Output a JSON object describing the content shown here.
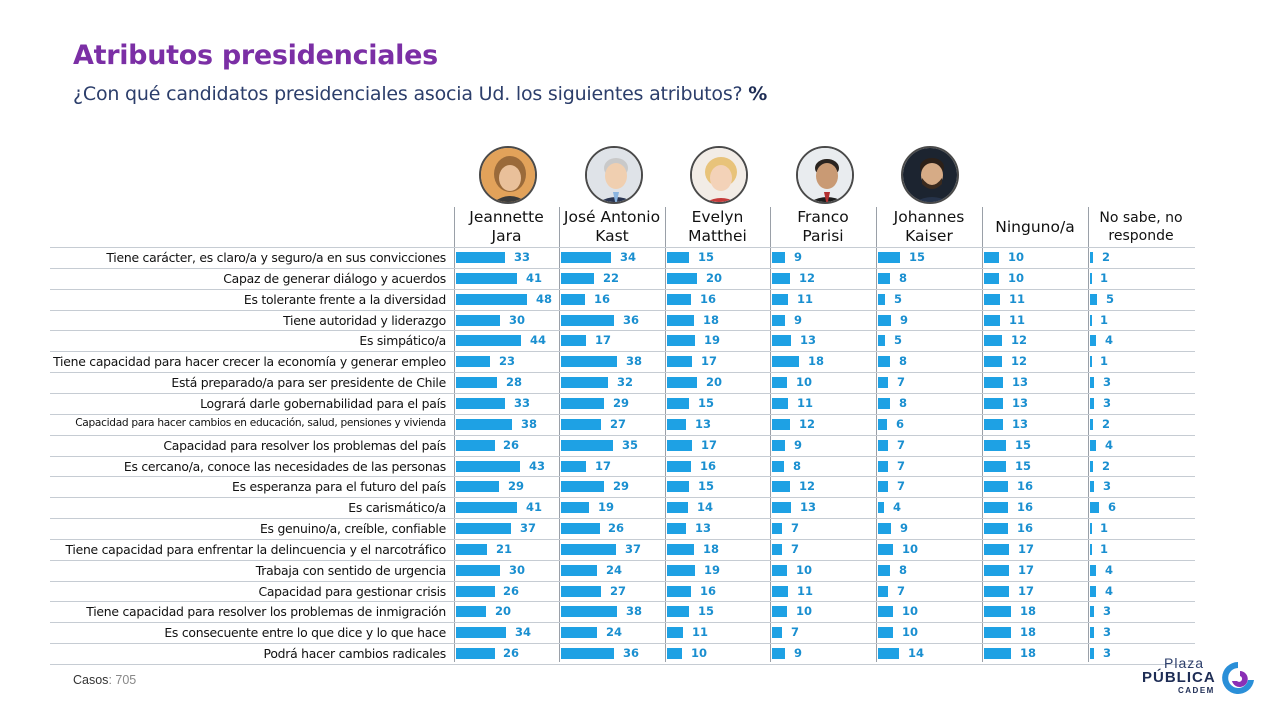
{
  "header": {
    "title": "Atributos presidenciales",
    "subtitle": "¿Con qué candidatos presidenciales asocia Ud. los siguientes atributos?",
    "subtitle_unit": "%"
  },
  "footer": {
    "cases_label": "Casos",
    "cases_value": ": 705",
    "logo_top": "Plaza",
    "logo_main": "PÚBLICA",
    "logo_sub": "CADEM"
  },
  "colors": {
    "title": "#7b2fa5",
    "bar": "#1ea1e4",
    "value": "#1a8fd0"
  },
  "chart_data": {
    "type": "bar",
    "orientation": "horizontal",
    "unit": "%",
    "series": [
      {
        "name": "Jeannette Jara",
        "values": [
          33,
          41,
          48,
          30,
          44,
          23,
          28,
          33,
          38,
          26,
          43,
          29,
          41,
          37,
          21,
          30,
          26,
          20,
          34,
          26
        ]
      },
      {
        "name": "José Antonio Kast",
        "values": [
          34,
          22,
          16,
          36,
          17,
          38,
          32,
          29,
          27,
          35,
          17,
          29,
          19,
          26,
          37,
          24,
          27,
          38,
          24,
          36
        ]
      },
      {
        "name": "Evelyn Matthei",
        "values": [
          15,
          20,
          16,
          18,
          19,
          17,
          20,
          15,
          13,
          17,
          16,
          15,
          14,
          13,
          18,
          19,
          16,
          15,
          11,
          10
        ]
      },
      {
        "name": "Franco Parisi",
        "values": [
          9,
          12,
          11,
          9,
          13,
          18,
          10,
          11,
          12,
          9,
          8,
          12,
          13,
          7,
          7,
          10,
          11,
          10,
          7,
          9
        ]
      },
      {
        "name": "Johannes Kaiser",
        "values": [
          15,
          8,
          5,
          9,
          5,
          8,
          7,
          8,
          6,
          7,
          7,
          7,
          4,
          9,
          10,
          8,
          7,
          10,
          10,
          14
        ]
      },
      {
        "name": "Ninguno/a",
        "values": [
          10,
          10,
          11,
          11,
          12,
          12,
          13,
          13,
          13,
          15,
          15,
          16,
          16,
          16,
          17,
          17,
          17,
          18,
          18,
          18
        ]
      },
      {
        "name": "No sabe, no responde",
        "values": [
          2,
          1,
          5,
          1,
          4,
          1,
          3,
          3,
          2,
          4,
          2,
          3,
          6,
          1,
          1,
          4,
          4,
          3,
          3,
          3
        ]
      }
    ],
    "categories": [
      "Tiene carácter, es claro/a y seguro/a en sus convicciones",
      "Capaz de generar diálogo y acuerdos",
      "Es tolerante frente a la diversidad",
      "Tiene autoridad y liderazgo",
      "Es simpático/a",
      "Tiene capacidad para hacer crecer la economía y generar empleo",
      "Está preparado/a para ser presidente de Chile",
      "Logrará darle gobernabilidad para el país",
      "Capacidad para hacer cambios en educación, salud, pensiones y vivienda",
      "Capacidad para resolver los problemas del país",
      "Es cercano/a, conoce las necesidades de las personas",
      "Es esperanza para el futuro del país",
      "Es carismático/a",
      "Es genuino/a, creíble, confiable",
      "Tiene capacidad para enfrentar la delincuencia y el narcotráfico",
      "Trabaja con sentido de urgencia",
      "Capacidad para gestionar crisis",
      "Tiene capacidad para resolver los problemas de inmigración",
      "Es consecuente entre lo que dice y lo que hace",
      "Podrá hacer cambios radicales"
    ],
    "column_headers": [
      [
        "Jeannette",
        "Jara"
      ],
      [
        "José Antonio",
        "Kast"
      ],
      [
        "Evelyn",
        "Matthei"
      ],
      [
        "Franco",
        "Parisi"
      ],
      [
        "Johannes",
        "Kaiser"
      ],
      [
        "Ninguno/a"
      ],
      [
        "No sabe, no",
        "responde"
      ]
    ]
  }
}
